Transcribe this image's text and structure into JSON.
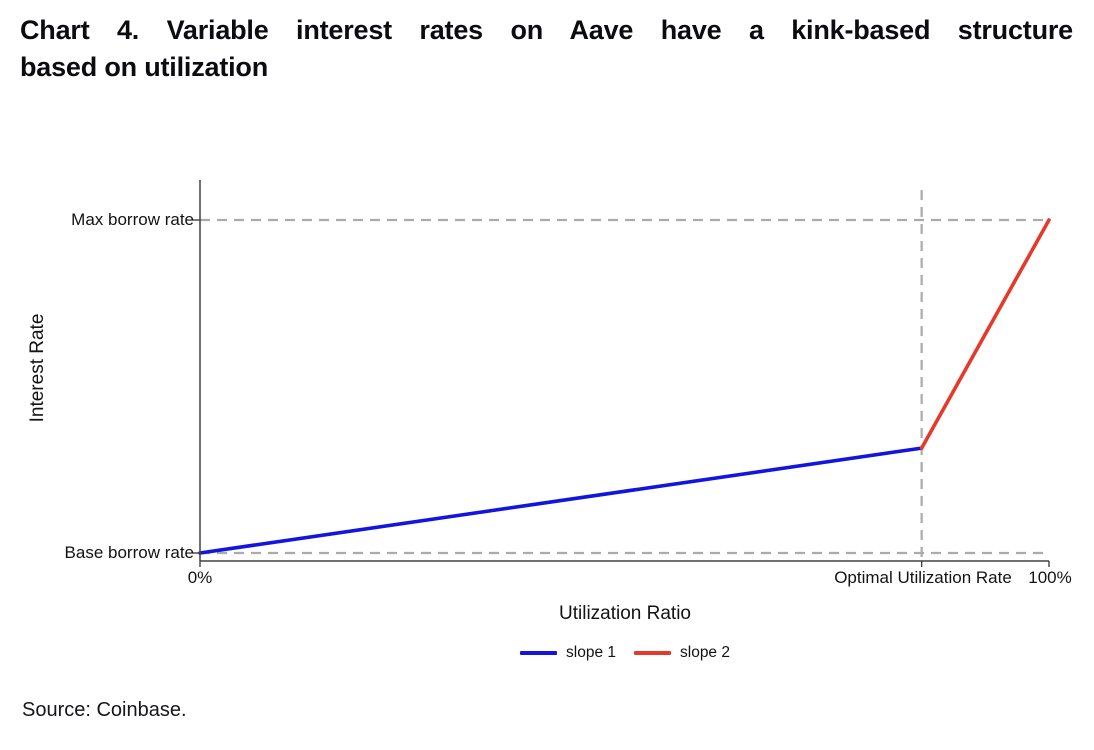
{
  "header": {
    "title_line1": "Chart 4. Variable interest rates on Aave have a kink-based structure",
    "title_line2": "based on utilization"
  },
  "footer": {
    "source": "Source: Coinbase."
  },
  "chart_data": {
    "type": "line",
    "title": "Chart 4. Variable interest rates on Aave have a kink-based structure based on utilization",
    "xlabel": "Utilization Ratio",
    "ylabel": "Interest Rate",
    "x_axis": {
      "range_fraction": [
        0,
        1
      ],
      "tick_positions": [
        0,
        0.85,
        1
      ],
      "tick_labels": [
        "0%",
        "Optimal Utilization Rate",
        "100%"
      ]
    },
    "y_axis": {
      "range_fraction": [
        0,
        1
      ],
      "tick_positions": [
        0,
        1
      ],
      "tick_labels": [
        "Base borrow rate",
        "Max borrow rate"
      ]
    },
    "series": [
      {
        "name": "slope 1",
        "color": "#1414e0",
        "points": [
          [
            0,
            0
          ],
          [
            0.85,
            0.315
          ]
        ]
      },
      {
        "name": "slope 2",
        "color": "#e6392c",
        "points": [
          [
            0.85,
            0.315
          ],
          [
            1,
            1
          ]
        ]
      }
    ],
    "reference_lines": [
      {
        "axis": "y",
        "value": 1,
        "style": "dashed",
        "color": "#ababab"
      },
      {
        "axis": "y",
        "value": 0,
        "style": "dashed",
        "color": "#ababab"
      },
      {
        "axis": "x",
        "value": 0.85,
        "style": "dashed",
        "color": "#ababab"
      }
    ],
    "legend": {
      "position": "bottom",
      "entries": [
        "slope 1",
        "slope 2"
      ]
    },
    "grid": false
  }
}
